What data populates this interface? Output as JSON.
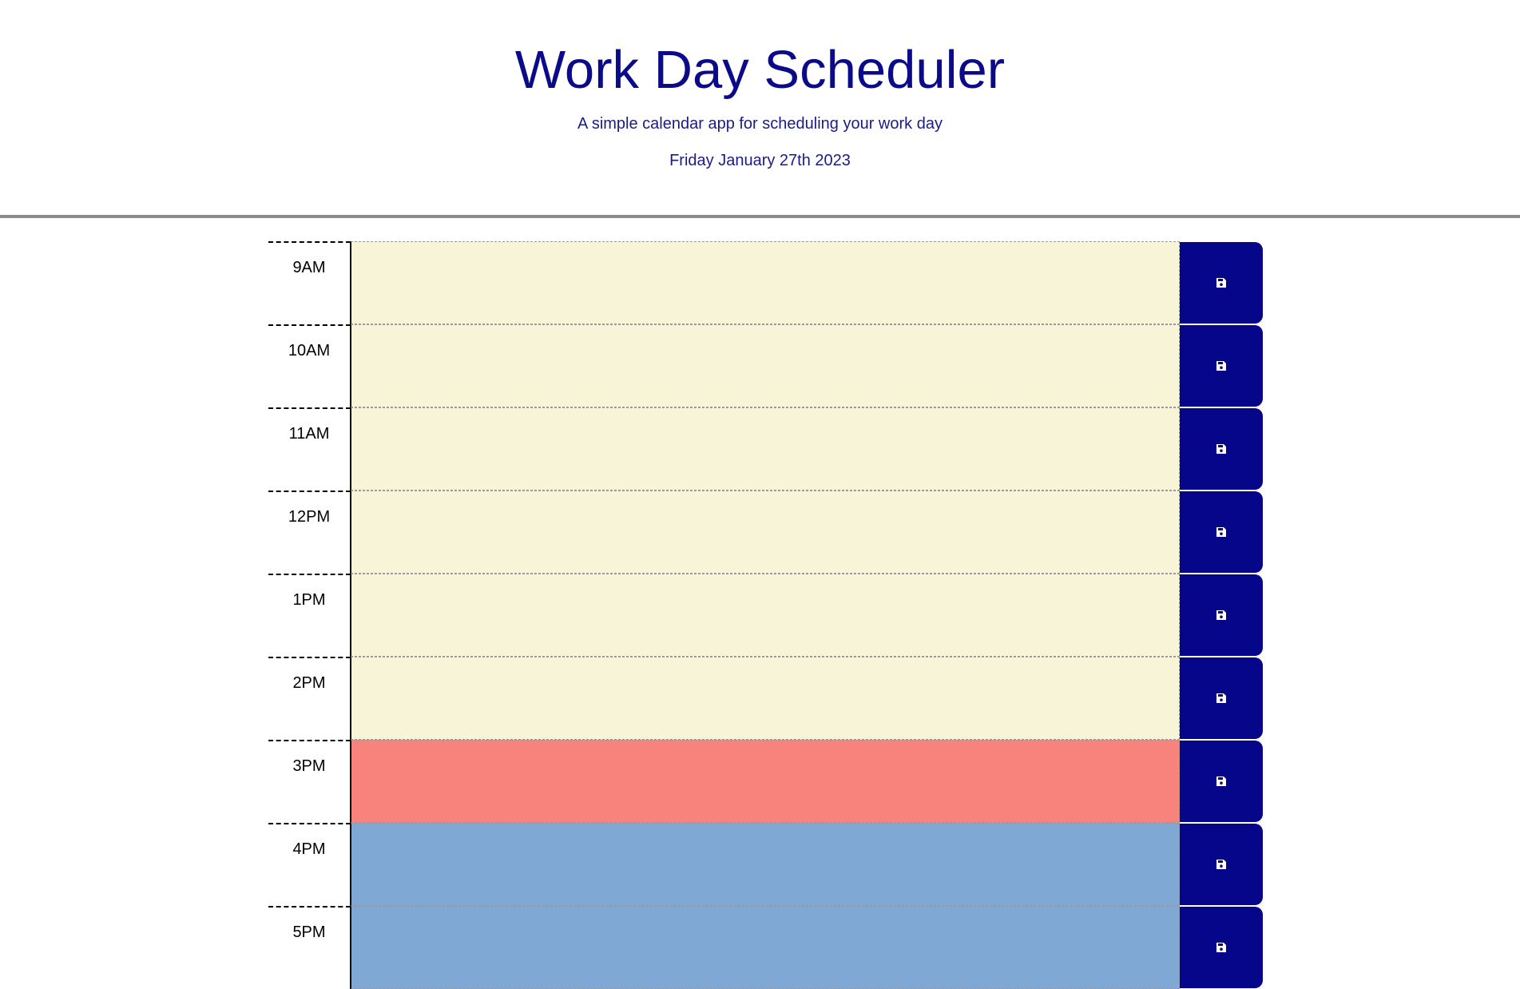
{
  "header": {
    "title": "Work Day Scheduler",
    "subtitle": "A simple calendar app for scheduling your work day",
    "current_date": "Friday January 27th 2023"
  },
  "colors": {
    "past": "#f7f4d7",
    "present": "#f8827c",
    "future": "#80a8d5",
    "save_button": "#06068a",
    "title_text": "#0b0b8a"
  },
  "time_blocks": [
    {
      "hour": "9AM",
      "text": "",
      "status": "past"
    },
    {
      "hour": "10AM",
      "text": "",
      "status": "past"
    },
    {
      "hour": "11AM",
      "text": "",
      "status": "past"
    },
    {
      "hour": "12PM",
      "text": "",
      "status": "past"
    },
    {
      "hour": "1PM",
      "text": "",
      "status": "past"
    },
    {
      "hour": "2PM",
      "text": "",
      "status": "past"
    },
    {
      "hour": "3PM",
      "text": "",
      "status": "present"
    },
    {
      "hour": "4PM",
      "text": "",
      "status": "future"
    },
    {
      "hour": "5PM",
      "text": "",
      "status": "future"
    }
  ],
  "icons": {
    "save": "floppy-disk-icon"
  }
}
